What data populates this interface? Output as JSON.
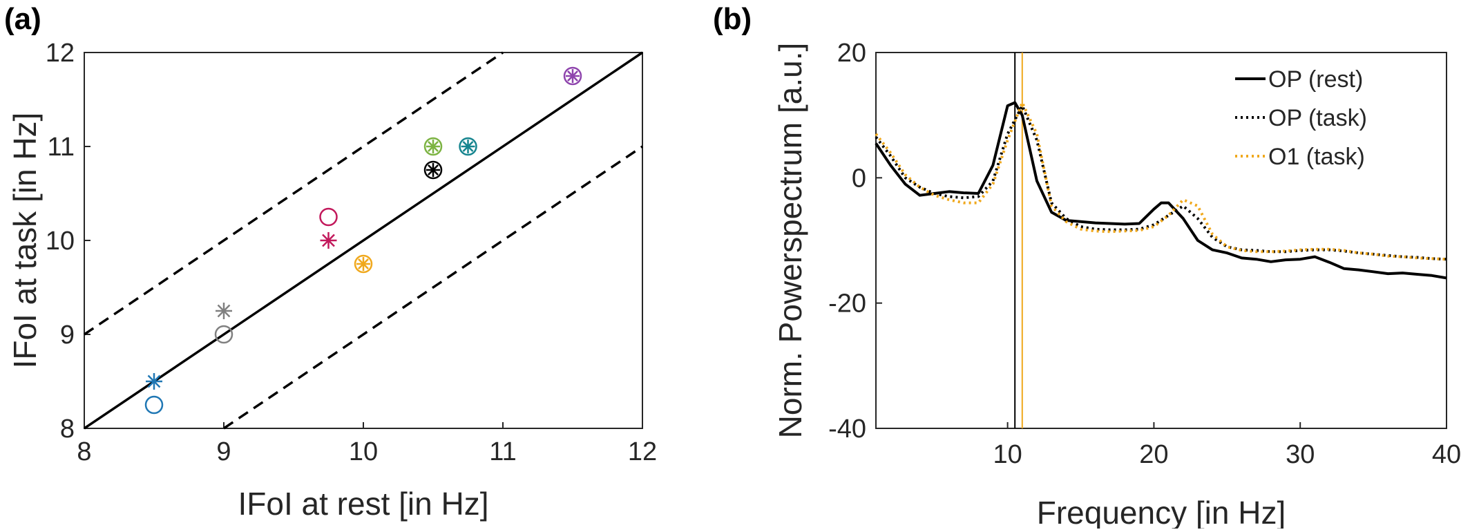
{
  "panels": {
    "a": {
      "label": "(a)"
    },
    "b": {
      "label": "(b)"
    }
  },
  "chart_data": [
    {
      "type": "scatter",
      "panel": "(a)",
      "title": "",
      "xlabel": "IFoI at rest [in Hz]",
      "ylabel": "IFoI at task [in Hz]",
      "xlim": [
        8,
        12
      ],
      "ylim": [
        8,
        12
      ],
      "xticks": [
        "8",
        "9",
        "10",
        "11",
        "12"
      ],
      "yticks": [
        "8",
        "9",
        "10",
        "11",
        "12"
      ],
      "grid": false,
      "reference_lines": [
        {
          "style": "solid",
          "points": [
            [
              8,
              8
            ],
            [
              12,
              12
            ]
          ]
        },
        {
          "style": "dashed",
          "points": [
            [
              8,
              9
            ],
            [
              11,
              12
            ]
          ]
        },
        {
          "style": "dashed",
          "points": [
            [
              9,
              8
            ],
            [
              12,
              11
            ]
          ]
        }
      ],
      "points": [
        {
          "x": 8.5,
          "y": 8.5,
          "marker": "asterisk",
          "color": "#1f77b4"
        },
        {
          "x": 8.5,
          "y": 8.25,
          "marker": "circle",
          "color": "#1f77b4"
        },
        {
          "x": 9.0,
          "y": 9.25,
          "marker": "asterisk",
          "color": "#808080"
        },
        {
          "x": 9.0,
          "y": 9.0,
          "marker": "circle",
          "color": "#808080"
        },
        {
          "x": 9.75,
          "y": 10.0,
          "marker": "asterisk",
          "color": "#c2185b"
        },
        {
          "x": 9.75,
          "y": 10.25,
          "marker": "circle",
          "color": "#c2185b"
        },
        {
          "x": 10.0,
          "y": 9.75,
          "marker": "circle-asterisk",
          "color": "#f0a81c"
        },
        {
          "x": 10.5,
          "y": 10.75,
          "marker": "circle-asterisk",
          "color": "#000000"
        },
        {
          "x": 10.5,
          "y": 11.0,
          "marker": "circle-asterisk",
          "color": "#7cb342"
        },
        {
          "x": 10.75,
          "y": 11.0,
          "marker": "circle-asterisk",
          "color": "#16858f"
        },
        {
          "x": 11.5,
          "y": 11.75,
          "marker": "circle-asterisk",
          "color": "#8e44ad"
        }
      ]
    },
    {
      "type": "line",
      "panel": "(b)",
      "title": "",
      "xlabel": "Frequency [in Hz]",
      "ylabel": "Norm. Powerspectrum [a.u.]",
      "xlim": [
        1,
        40
      ],
      "ylim": [
        -40,
        20
      ],
      "xticks": [
        "10",
        "20",
        "30",
        "40"
      ],
      "yticks": [
        "20",
        "0",
        "-20",
        "-40"
      ],
      "grid": false,
      "legend_position": "top-right",
      "vertical_lines": [
        {
          "x": 10.5,
          "color": "#000000"
        },
        {
          "x": 11.0,
          "color": "#f0a81c"
        }
      ],
      "series": [
        {
          "name": "OP (rest)",
          "style": "solid",
          "color": "#000000",
          "x": [
            1,
            2,
            3,
            4,
            5,
            6,
            7,
            8,
            9,
            10,
            10.5,
            11,
            12,
            13,
            14,
            15,
            16,
            17,
            18,
            19,
            20,
            20.5,
            21,
            22,
            23,
            24,
            25,
            26,
            27,
            28,
            29,
            30,
            31,
            32,
            33,
            34,
            35,
            36,
            37,
            38,
            39,
            40
          ],
          "y": [
            5.5,
            2,
            -1,
            -2.8,
            -2.5,
            -2.2,
            -2.4,
            -2.5,
            2,
            11.5,
            12,
            10,
            -0.5,
            -5.5,
            -6.8,
            -7,
            -7.2,
            -7.3,
            -7.4,
            -7.3,
            -5,
            -4,
            -4,
            -6.5,
            -10,
            -11.5,
            -12,
            -12.8,
            -13,
            -13.4,
            -13.1,
            -13,
            -12.6,
            -13.5,
            -14.5,
            -14.7,
            -15,
            -15.3,
            -15.2,
            -15.4,
            -15.6,
            -16
          ]
        },
        {
          "name": "OP (task)",
          "style": "dotted",
          "color": "#000000",
          "x": [
            1,
            2,
            3,
            4,
            5,
            6,
            7,
            8,
            9,
            10,
            11,
            12,
            13,
            14,
            15,
            16,
            17,
            18,
            19,
            20,
            21,
            22,
            23,
            24,
            25,
            26,
            27,
            28,
            29,
            30,
            31,
            32,
            33,
            34,
            35,
            36,
            37,
            38,
            39,
            40
          ],
          "y": [
            6.5,
            3.5,
            0,
            -1.5,
            -2.5,
            -3,
            -3.2,
            -3,
            -0.5,
            7,
            11.5,
            6,
            -4,
            -6.5,
            -7.8,
            -8.2,
            -8.3,
            -8.3,
            -8.2,
            -7.5,
            -6,
            -4.5,
            -6.5,
            -9.5,
            -11,
            -11.5,
            -11.6,
            -11.8,
            -11.8,
            -11.6,
            -11.5,
            -11.5,
            -11.7,
            -12,
            -12.2,
            -12.4,
            -12.6,
            -12.7,
            -12.9,
            -13
          ]
        },
        {
          "name": "O1 (task)",
          "style": "dotted",
          "color": "#f0a81c",
          "x": [
            1,
            2,
            3,
            4,
            5,
            6,
            7,
            8,
            9,
            10,
            11,
            12,
            13,
            14,
            15,
            16,
            17,
            18,
            19,
            20,
            21,
            22,
            23,
            24,
            25,
            26,
            27,
            28,
            29,
            30,
            31,
            32,
            33,
            34,
            35,
            36,
            37,
            38,
            39,
            40
          ],
          "y": [
            7,
            4,
            0.5,
            -1.5,
            -2.8,
            -3.5,
            -4,
            -4,
            -1,
            6,
            12,
            7,
            -4.5,
            -7,
            -8.2,
            -8.5,
            -8.6,
            -8.5,
            -8.4,
            -7.8,
            -6,
            -3.5,
            -4.5,
            -9,
            -11,
            -11.6,
            -11.8,
            -11.8,
            -11.7,
            -11.5,
            -11.4,
            -11.4,
            -11.6,
            -12,
            -12.2,
            -12.5,
            -12.6,
            -12.8,
            -12.9,
            -13
          ]
        }
      ]
    }
  ]
}
